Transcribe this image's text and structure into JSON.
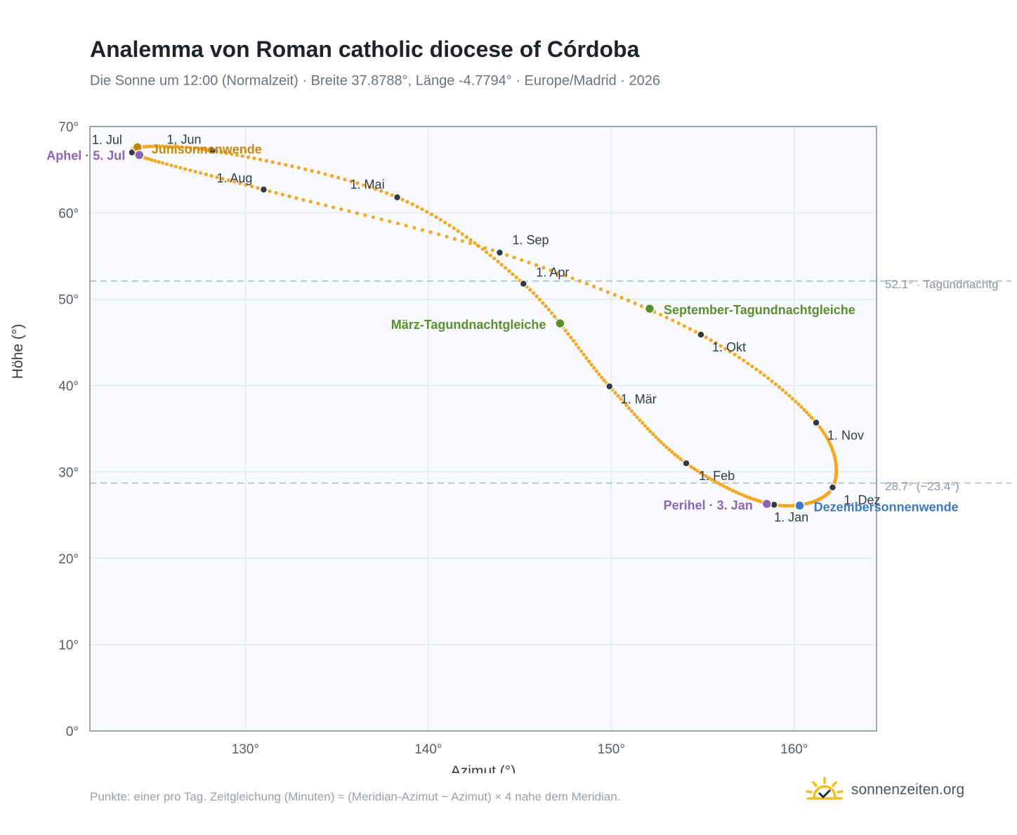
{
  "title": "Analemma von Roman catholic diocese of Córdoba",
  "subtitle": "Die Sonne um 12:00 (Normalzeit) · Breite 37.8788°, Länge -4.7794° · Europe/Madrid · 2026",
  "footnote": "Punkte: einer pro Tag. Zeitgleichung (Minuten) ≈ (Meridian-Azimut − Azimut) × 4 nahe dem Meridian.",
  "brand": {
    "name": "sonnenzeiten.org",
    "icon": "sun-check-icon"
  },
  "colors": {
    "curve": "#f5a623",
    "month_marker": "#333a44",
    "solstice_june": "#c9870c",
    "equinox": "#5a8f2e",
    "aphel_perihel": "#8e63b5",
    "solstice_december": "#3b7ac4",
    "plot_background": "#f8fafd",
    "reference_line": "#a9b8c6"
  },
  "chart_data": {
    "type": "scatter",
    "xlabel": "Azimut (°)",
    "ylabel": "Höhe (°)",
    "xlim": [
      121.5,
      164.5
    ],
    "ylim": [
      0,
      70
    ],
    "x_ticks": [
      "130°",
      "140°",
      "150°",
      "160°"
    ],
    "y_ticks": [
      "0°",
      "10°",
      "20°",
      "30°",
      "40°",
      "50°",
      "60°",
      "70°"
    ],
    "grid": true,
    "points_per_day": 1,
    "month_markers": [
      {
        "label": "1. Jan",
        "az": 158.9,
        "alt": 26.2
      },
      {
        "label": "1. Feb",
        "az": 154.1,
        "alt": 31.0
      },
      {
        "label": "1. Mär",
        "az": 149.9,
        "alt": 39.9
      },
      {
        "label": "1. Apr",
        "az": 145.2,
        "alt": 51.8
      },
      {
        "label": "1. Mai",
        "az": 138.3,
        "alt": 61.8
      },
      {
        "label": "1. Jun",
        "az": 128.2,
        "alt": 67.2
      },
      {
        "label": "1. Jul",
        "az": 123.8,
        "alt": 67.0
      },
      {
        "label": "1. Aug",
        "az": 131.0,
        "alt": 62.7
      },
      {
        "label": "1. Sep",
        "az": 143.9,
        "alt": 55.4
      },
      {
        "label": "1. Okt",
        "az": 154.9,
        "alt": 45.9
      },
      {
        "label": "1. Nov",
        "az": 161.2,
        "alt": 35.7
      },
      {
        "label": "1. Dez",
        "az": 162.1,
        "alt": 28.2
      }
    ],
    "special_points": [
      {
        "label": "Junisonnenwende",
        "az": 124.1,
        "alt": 67.6,
        "color": "#c9870c"
      },
      {
        "label": "Aphel · 5. Jul",
        "az": 124.2,
        "alt": 66.7,
        "color": "#8e63b5"
      },
      {
        "label": "März-Tagundnachtgleiche",
        "az": 147.2,
        "alt": 47.2,
        "color": "#5a8f2e"
      },
      {
        "label": "September-Tagundnachtgleiche",
        "az": 152.1,
        "alt": 48.9,
        "color": "#5a8f2e"
      },
      {
        "label": "Perihel · 3. Jan",
        "az": 158.5,
        "alt": 26.3,
        "color": "#8e63b5"
      },
      {
        "label": "Dezembersonnenwende",
        "az": 160.3,
        "alt": 26.1,
        "color": "#3b7ac4"
      }
    ],
    "reference_lines": [
      {
        "alt": 52.1,
        "label": "52.1° · Tagundnachtg"
      },
      {
        "alt": 28.7,
        "label": "28.7° (−23.4°)"
      }
    ]
  }
}
